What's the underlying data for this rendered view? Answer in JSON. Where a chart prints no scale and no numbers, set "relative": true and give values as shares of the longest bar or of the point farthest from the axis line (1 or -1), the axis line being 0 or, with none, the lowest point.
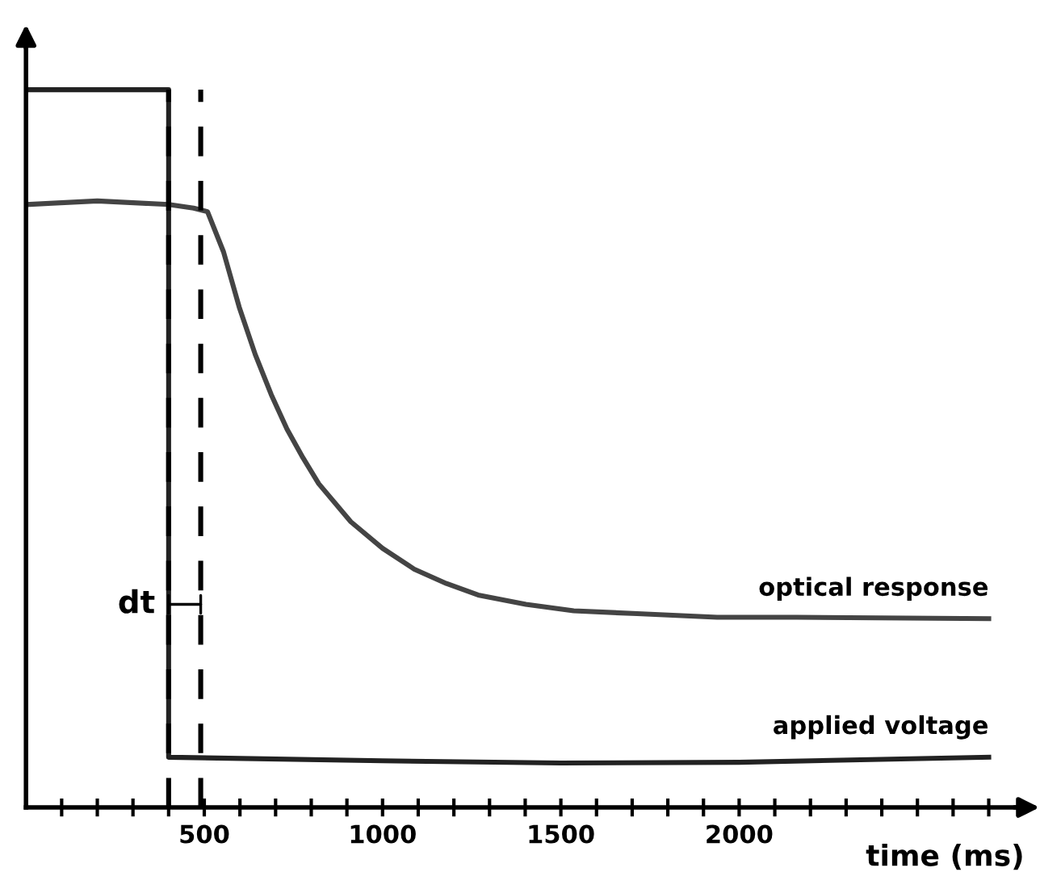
{
  "chart_data": {
    "type": "line",
    "relative": true,
    "xlabel": "time (ms)",
    "xlim": [
      0,
      2800
    ],
    "xticks": [
      {
        "value": 100,
        "label": null
      },
      {
        "value": 200,
        "label": null
      },
      {
        "value": 300,
        "label": null
      },
      {
        "value": 400,
        "label": null
      },
      500,
      {
        "value": 600,
        "label": null
      },
      {
        "value": 700,
        "label": null
      },
      {
        "value": 800,
        "label": null
      },
      {
        "value": 900,
        "label": null
      },
      1000,
      {
        "value": 1100,
        "label": null
      },
      {
        "value": 1200,
        "label": null
      },
      {
        "value": 1300,
        "label": null
      },
      {
        "value": 1400,
        "label": null
      },
      1500,
      {
        "value": 1600,
        "label": null
      },
      {
        "value": 1700,
        "label": null
      },
      {
        "value": 1800,
        "label": null
      },
      {
        "value": 1900,
        "label": null
      },
      2000,
      {
        "value": 2100,
        "label": null
      },
      {
        "value": 2200,
        "label": null
      },
      {
        "value": 2300,
        "label": null
      },
      {
        "value": 2400,
        "label": null
      },
      {
        "value": 2500,
        "label": null
      },
      {
        "value": 2600,
        "label": null
      },
      {
        "value": 2700,
        "label": null
      }
    ],
    "series": [
      {
        "name": "optical response",
        "color": "#444444",
        "x": [
          0,
          200,
          400,
          470,
          509,
          554,
          598,
          643,
          688,
          732,
          777,
          821,
          911,
          1000,
          1089,
          1179,
          1268,
          1402,
          1536,
          1714,
          1938,
          2161,
          2700
        ],
        "values": [
          0.84,
          0.845,
          0.84,
          0.835,
          0.83,
          0.774,
          0.697,
          0.631,
          0.575,
          0.527,
          0.487,
          0.451,
          0.398,
          0.361,
          0.332,
          0.312,
          0.296,
          0.283,
          0.274,
          0.27,
          0.265,
          0.265,
          0.263
        ]
      },
      {
        "name": "applied voltage",
        "color": "#222222",
        "x": [
          0,
          400,
          400,
          1000,
          1500,
          2000,
          2700
        ],
        "values": [
          1,
          1,
          0.07,
          0.065,
          0.062,
          0.063,
          0.07
        ]
      }
    ],
    "ref_lines": [
      {
        "axis": "x",
        "value": 400,
        "color": "#000000",
        "line_style": "dashed"
      },
      {
        "axis": "x",
        "value": 490,
        "color": "#000000",
        "line_style": "dashed"
      }
    ],
    "annotations": [
      {
        "text": "dt",
        "x": 400,
        "y": 0.283
      }
    ],
    "marker": "none",
    "line_style": "solid",
    "grid": false,
    "legend": false
  }
}
